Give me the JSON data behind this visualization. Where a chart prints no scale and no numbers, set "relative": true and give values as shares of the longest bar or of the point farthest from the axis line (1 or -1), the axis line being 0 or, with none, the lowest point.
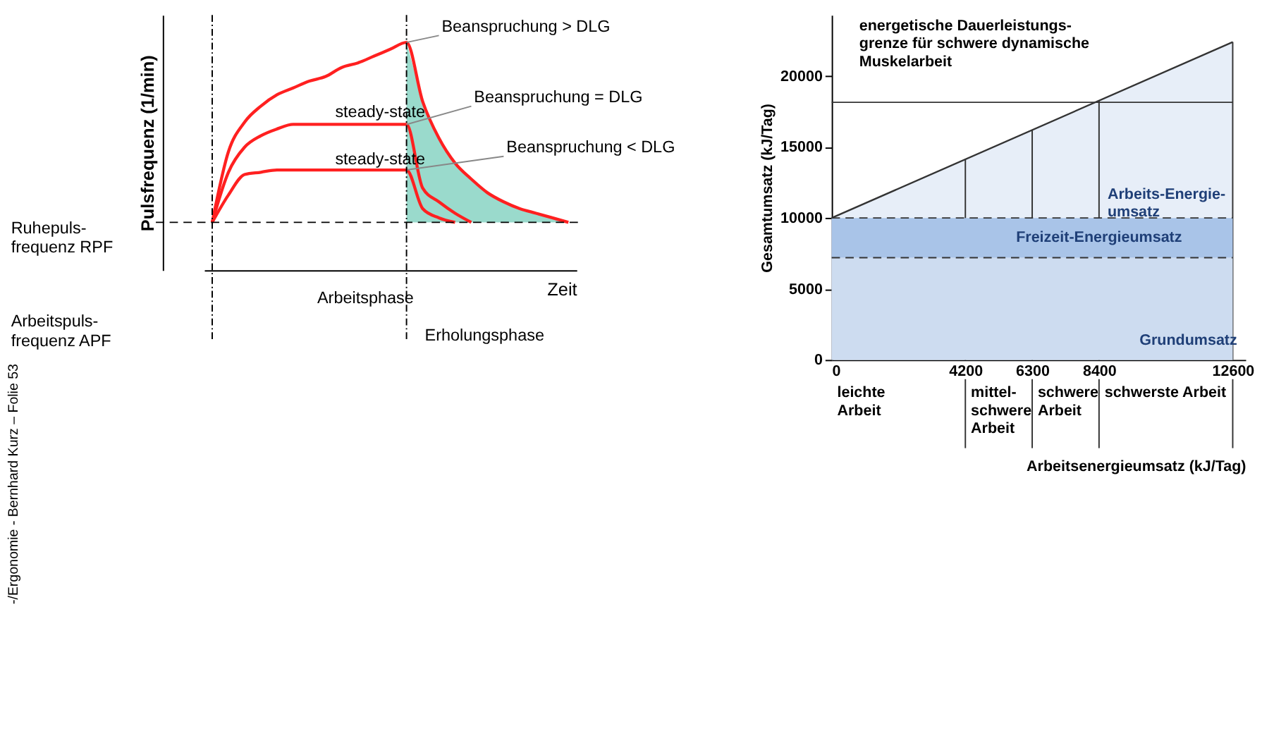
{
  "chart_data": [
    {
      "type": "line",
      "relative": true,
      "xlabel": "Zeit",
      "ylabel": "Pulsfrequenz (1/min)",
      "grid": false,
      "tick_labels": false,
      "categories": [
        null,
        null,
        null,
        null,
        null,
        null,
        null,
        null,
        null,
        null,
        null,
        null,
        null,
        null,
        null,
        null,
        null,
        null,
        null,
        null,
        null,
        null,
        null
      ],
      "series": [
        {
          "name": "Beanspruchung > DLG",
          "color": "#ff2020",
          "values": [
            0.21,
            0.52,
            0.65,
            0.72,
            0.77,
            0.8,
            0.83,
            0.85,
            0.89,
            0.91,
            0.94,
            0.97,
            1,
            0.74,
            0.58,
            0.47,
            0.4,
            0.34,
            0.3,
            0.27,
            0.25,
            0.23,
            0.21
          ],
          "lower": [
            null,
            null,
            null,
            null,
            null,
            null,
            null,
            null,
            null,
            null,
            null,
            null,
            0.21,
            0.21,
            0.21,
            0.21,
            0.21,
            0.21,
            0.21,
            0.21,
            0.21,
            0.21,
            0.21
          ],
          "upper": [
            null,
            null,
            null,
            null,
            null,
            null,
            null,
            null,
            null,
            null,
            null,
            null,
            1,
            0.74,
            0.58,
            0.47,
            0.4,
            0.34,
            0.3,
            0.27,
            0.25,
            0.23,
            0.21
          ]
        },
        {
          "name": "Beanspruchung = DLG",
          "color": "#ff2020",
          "values": [
            0.21,
            0.43,
            0.54,
            0.59,
            0.62,
            0.64,
            0.64,
            0.64,
            0.64,
            0.64,
            0.64,
            0.64,
            0.64,
            0.36,
            0.3,
            0.25,
            0.21,
            null,
            null,
            null,
            null,
            null,
            null
          ]
        },
        {
          "name": "Beanspruchung < DLG",
          "color": "#ff2020",
          "values": [
            0.21,
            0.33,
            0.42,
            0.43,
            0.44,
            0.44,
            0.44,
            0.44,
            0.44,
            0.44,
            0.44,
            0.44,
            0.44,
            0.27,
            0.23,
            0.21,
            null,
            null,
            null,
            null,
            null,
            null,
            null
          ]
        }
      ],
      "ref_lines": [
        {
          "axis": "y",
          "value": 0.21,
          "label": "Ruhepuls-\nfrequenz RPF",
          "color": "#000000",
          "line_style": "dashed"
        }
      ],
      "annotations": [
        "steady-state",
        "steady-state",
        "Arbeitspuls-\nfrequenz APF",
        "Arbeitsphase",
        "Erholungsphase",
        "-/Ergonomie - Bernhard Kurz – Folie 53"
      ]
    },
    {
      "type": "area",
      "xlabel": "Arbeitsenergieumsatz (kJ/Tag)",
      "ylabel": "Gesamtumsatz (kJ/Tag)",
      "grid": false,
      "xlim": [
        0,
        13000
      ],
      "ylim": [
        0,
        24300
      ],
      "xticks": [
        0,
        4200,
        6300,
        8400,
        12600
      ],
      "yticks": [
        0,
        5000,
        10000,
        15000,
        20000
      ],
      "series": [
        {
          "color": "#dde7f5",
          "x": [
            0,
            12600
          ],
          "values": [
            10000,
            22400
          ]
        }
      ],
      "bands": [
        {
          "axis": "y",
          "from": 0,
          "to": 7200,
          "label": "Grundumsatz",
          "color": "#cddcf0"
        },
        {
          "axis": "y",
          "from": 7200,
          "to": 10000,
          "label": "Freizeit-Energieumsatz",
          "color": "#a9c4e8"
        }
      ],
      "ref_lines": [
        {
          "axis": "y",
          "value": 10000,
          "color": "#333333",
          "line_style": "dashed"
        },
        {
          "axis": "y",
          "value": 7200,
          "color": "#333333",
          "line_style": "dashed"
        },
        {
          "axis": "y",
          "value": 18150,
          "label": "energetische Dauerleistungs-\ngrenze für schwere dynamische\nMuskelarbeit",
          "color": "#333333"
        },
        {
          "axis": "x",
          "value": 4200,
          "color": "#333333"
        },
        {
          "axis": "x",
          "value": 6300,
          "color": "#333333"
        },
        {
          "axis": "x",
          "value": 8400,
          "color": "#333333"
        },
        {
          "axis": "x",
          "value": 12600,
          "color": "#333333"
        }
      ],
      "annotations": [
        "Arbeits-Energie-\numsatz",
        "leichte\nArbeit",
        "mittel-\nschwere\nArbeit",
        "schwere\nArbeit",
        "schwerste Arbeit"
      ]
    }
  ]
}
